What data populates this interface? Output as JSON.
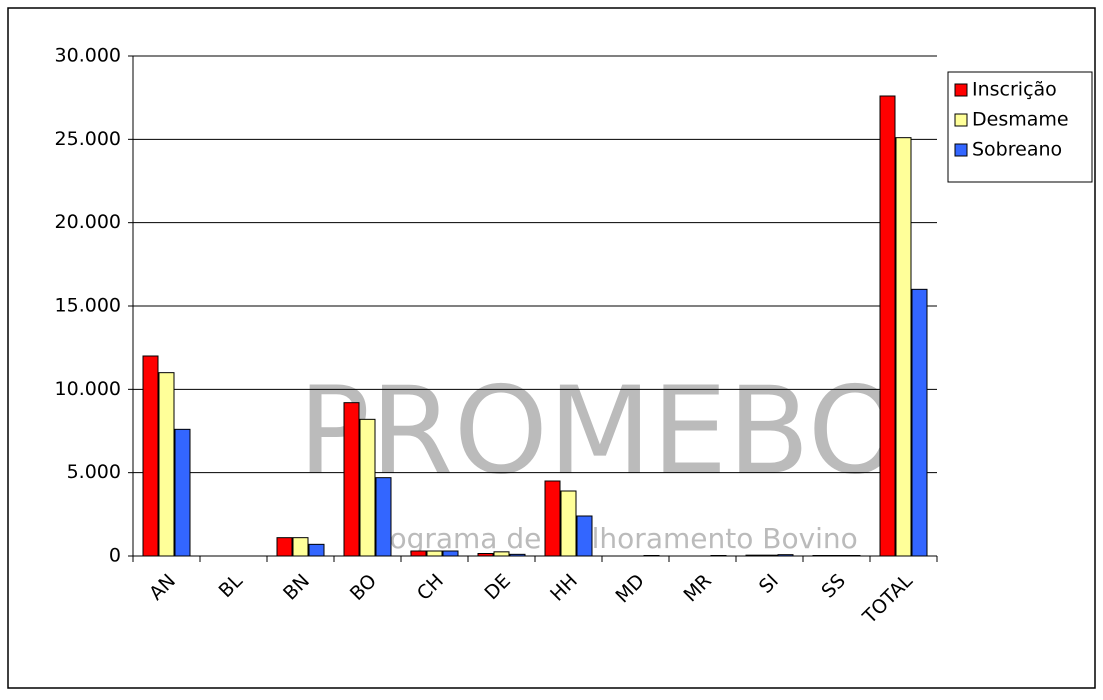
{
  "chart_data": {
    "type": "bar",
    "categories": [
      "AN",
      "BL",
      "BN",
      "BO",
      "CH",
      "DE",
      "HH",
      "MD",
      "MR",
      "SI",
      "SS",
      "TOTAL"
    ],
    "series": [
      {
        "name": "Inscrição",
        "color": "#ff0000",
        "values": [
          12000,
          0,
          1100,
          9200,
          300,
          150,
          4500,
          0,
          0,
          50,
          30,
          27600
        ]
      },
      {
        "name": "Desmame",
        "color": "#ffff99",
        "values": [
          11000,
          0,
          1100,
          8200,
          300,
          250,
          3900,
          0,
          0,
          50,
          30,
          25100
        ]
      },
      {
        "name": "Sobreano",
        "color": "#3366ff",
        "values": [
          7600,
          0,
          700,
          4700,
          300,
          100,
          2400,
          30,
          30,
          80,
          30,
          16000
        ]
      }
    ],
    "ylim": [
      0,
      30000
    ],
    "yticks": [
      0,
      {
        "value": 5000,
        "label": "5.000"
      },
      {
        "value": 10000,
        "label": "10.000"
      },
      {
        "value": 15000,
        "label": "15.000"
      },
      {
        "value": 20000,
        "label": "20.000"
      },
      {
        "value": 25000,
        "label": "25.000"
      },
      {
        "value": 30000,
        "label": "30.000"
      }
    ],
    "grid": true,
    "legend": "right",
    "watermark": {
      "title": "PROMEBO",
      "subtitle": "Programa de Melhoramento Bovino"
    }
  }
}
